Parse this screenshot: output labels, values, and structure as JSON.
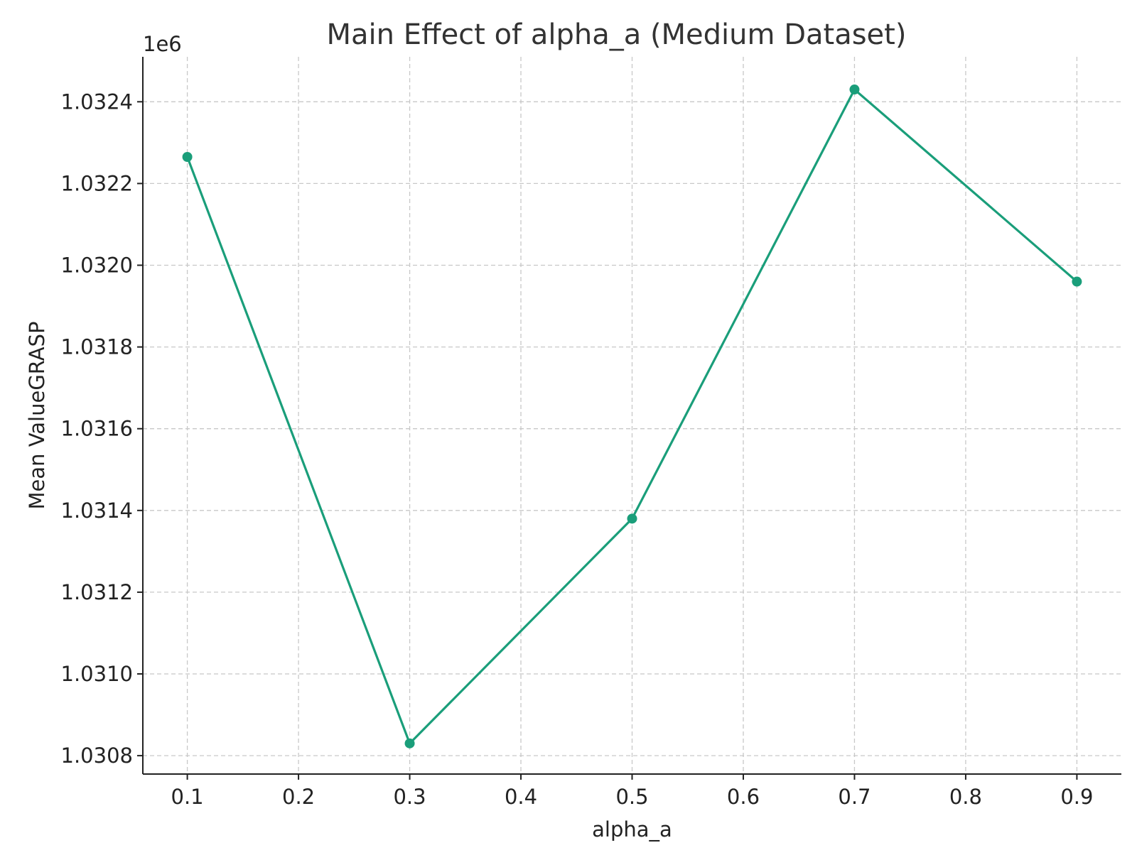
{
  "chart_data": {
    "type": "line",
    "title": "Main Effect of alpha_a (Medium Dataset)",
    "xlabel": "alpha_a",
    "ylabel": "Mean ValueGRASP",
    "y_offset_label": "1e6",
    "x": [
      0.1,
      0.3,
      0.5,
      0.7,
      0.9
    ],
    "series": [
      {
        "values": [
          1032265,
          1030830,
          1031380,
          1032430,
          1031960
        ],
        "color": "#1a9e7a",
        "marker": "circle"
      }
    ],
    "xlim": [
      0.06,
      0.94
    ],
    "ylim": [
      1030755,
      1032510
    ],
    "x_ticks": [
      0.1,
      0.2,
      0.3,
      0.4,
      0.5,
      0.6,
      0.7,
      0.8,
      0.9
    ],
    "x_tick_labels": [
      "0.1",
      "0.2",
      "0.3",
      "0.4",
      "0.5",
      "0.6",
      "0.7",
      "0.8",
      "0.9"
    ],
    "y_ticks": [
      1030800,
      1031000,
      1031200,
      1031400,
      1031600,
      1031800,
      1032000,
      1032200,
      1032400
    ],
    "y_tick_labels": [
      "1.0308",
      "1.0310",
      "1.0312",
      "1.0314",
      "1.0316",
      "1.0318",
      "1.0320",
      "1.0322",
      "1.0324"
    ],
    "grid": true,
    "grid_style": "dashed",
    "spines": [
      "left",
      "bottom"
    ]
  }
}
